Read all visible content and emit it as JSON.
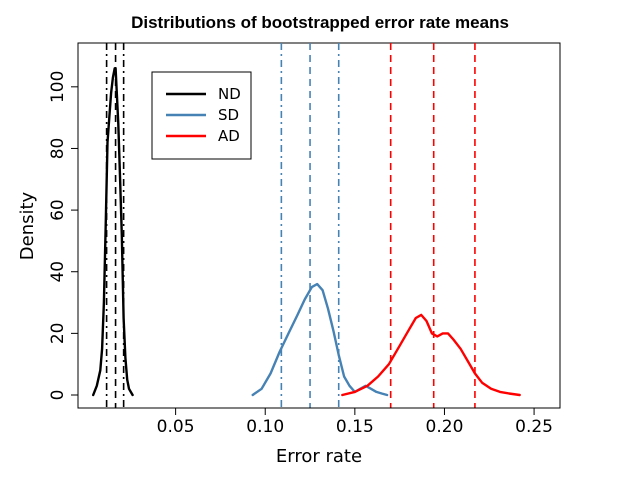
{
  "chart_data": {
    "type": "line",
    "title": "Distributions of bootstrapped error rate means",
    "xlabel": "Error rate",
    "ylabel": "Density",
    "xlim": [
      0.0,
      0.26
    ],
    "ylim": [
      0,
      110
    ],
    "xticks": [
      0.05,
      0.1,
      0.15,
      0.2,
      0.25
    ],
    "xtick_labels": [
      "0.05",
      "0.10",
      "0.15",
      "0.20",
      "0.25"
    ],
    "yticks": [
      0,
      20,
      40,
      60,
      80,
      100
    ],
    "ytick_labels": [
      "0",
      "20",
      "40",
      "60",
      "80",
      "100"
    ],
    "grid": false,
    "legend_position": "top-left",
    "series": [
      {
        "name": "ND",
        "color": "#000000",
        "x": [
          0.004,
          0.006,
          0.008,
          0.009,
          0.01,
          0.011,
          0.012,
          0.013,
          0.014,
          0.015,
          0.016,
          0.0165,
          0.017,
          0.018,
          0.019,
          0.02,
          0.021,
          0.022,
          0.023,
          0.024,
          0.026
        ],
        "y": [
          0,
          3,
          8,
          15,
          30,
          55,
          82,
          90,
          98,
          103,
          106,
          106,
          100,
          88,
          70,
          52,
          25,
          12,
          5,
          2,
          0
        ]
      },
      {
        "name": "SD",
        "color": "#4682b4",
        "x": [
          0.093,
          0.098,
          0.103,
          0.108,
          0.113,
          0.118,
          0.122,
          0.126,
          0.129,
          0.132,
          0.135,
          0.138,
          0.141,
          0.144,
          0.147,
          0.15,
          0.153,
          0.156,
          0.159,
          0.162,
          0.165,
          0.168
        ],
        "y": [
          0,
          2,
          7,
          14,
          20,
          26,
          31,
          35,
          36,
          34,
          28,
          21,
          13,
          6,
          3,
          1,
          2,
          3,
          2,
          1,
          0.5,
          0
        ]
      },
      {
        "name": "AD",
        "color": "#ff0000",
        "x": [
          0.143,
          0.15,
          0.157,
          0.163,
          0.169,
          0.175,
          0.18,
          0.184,
          0.187,
          0.19,
          0.193,
          0.196,
          0.199,
          0.202,
          0.205,
          0.209,
          0.213,
          0.217,
          0.221,
          0.226,
          0.231,
          0.236,
          0.242
        ],
        "y": [
          0,
          1,
          3,
          6,
          10,
          16,
          21,
          25,
          26,
          24,
          20,
          19,
          20,
          20,
          18,
          15,
          11,
          7,
          4,
          2,
          1,
          0.5,
          0
        ]
      }
    ],
    "reference_lines": [
      {
        "series": "ND",
        "style": "dashdot",
        "x": 0.0115
      },
      {
        "series": "ND",
        "style": "dashed",
        "x": 0.0165
      },
      {
        "series": "ND",
        "style": "dashdot",
        "x": 0.021
      },
      {
        "series": "SD",
        "style": "dashdot",
        "x": 0.109
      },
      {
        "series": "SD",
        "style": "dashed",
        "x": 0.125
      },
      {
        "series": "SD",
        "style": "dashdot",
        "x": 0.141
      },
      {
        "series": "AD",
        "style": "dashed",
        "x": 0.17
      },
      {
        "series": "AD",
        "style": "dashed",
        "x": 0.194
      },
      {
        "series": "AD",
        "style": "dashed",
        "x": 0.217
      }
    ]
  }
}
